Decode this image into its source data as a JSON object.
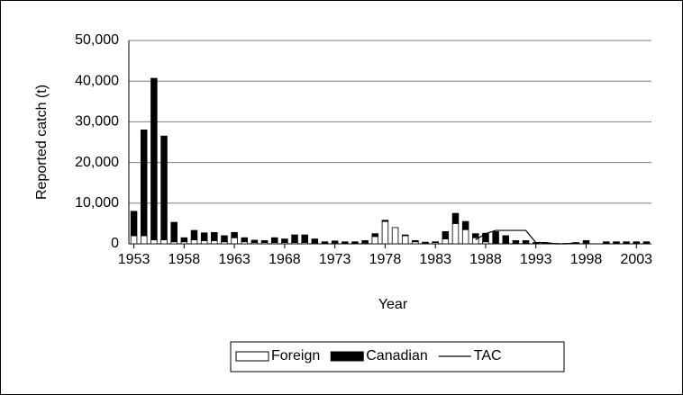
{
  "chart_data": {
    "type": "stacked_bar_line",
    "x_label": "Year",
    "y_label": "Reported catch (t)",
    "categories": [
      "1953",
      null,
      null,
      null,
      null,
      "1958",
      null,
      null,
      null,
      null,
      "1963",
      null,
      null,
      null,
      null,
      "1968",
      null,
      null,
      null,
      null,
      "1973",
      null,
      null,
      null,
      null,
      "1978",
      null,
      null,
      null,
      null,
      "1983",
      null,
      null,
      null,
      null,
      "1988",
      null,
      null,
      null,
      null,
      "1993",
      null,
      null,
      null,
      null,
      "1998",
      null,
      null,
      null,
      null,
      "2003",
      null
    ],
    "series": [
      {
        "name": "Foreign",
        "color": "#ffffff",
        "values": [
          2000,
          2000,
          1000,
          1000,
          500,
          500,
          1000,
          800,
          800,
          500,
          1500,
          500,
          300,
          300,
          300,
          300,
          300,
          300,
          200,
          100,
          200,
          100,
          100,
          200,
          1800,
          5500,
          4000,
          2000,
          500,
          200,
          300,
          1200,
          5000,
          3500,
          1500,
          500,
          0,
          0,
          0,
          0,
          0,
          0,
          0,
          0,
          0,
          0,
          0,
          0,
          0,
          0,
          0,
          0
        ]
      },
      {
        "name": "Canadian",
        "color": "#000000",
        "values": [
          6000,
          26000,
          39700,
          25500,
          4800,
          1000,
          2300,
          1900,
          2000,
          1500,
          1300,
          1000,
          600,
          500,
          1200,
          900,
          1900,
          1900,
          1000,
          400,
          500,
          400,
          400,
          600,
          700,
          300,
          0,
          200,
          300,
          200,
          200,
          1800,
          2500,
          2000,
          1000,
          2100,
          3000,
          2000,
          800,
          800,
          300,
          200,
          100,
          100,
          300,
          800,
          0,
          500,
          500,
          500,
          500,
          500
        ]
      },
      {
        "name": "TAC",
        "line": true,
        "color": "#000000",
        "values": [
          null,
          null,
          null,
          null,
          null,
          null,
          null,
          null,
          null,
          null,
          null,
          null,
          null,
          null,
          null,
          null,
          null,
          null,
          null,
          null,
          null,
          null,
          null,
          null,
          null,
          null,
          null,
          null,
          null,
          null,
          null,
          null,
          null,
          null,
          1000,
          2500,
          3300,
          3300,
          3300,
          3300,
          300,
          300,
          0,
          0,
          300,
          null,
          null,
          null,
          null,
          null,
          null,
          null
        ]
      }
    ],
    "ylim": [
      0,
      50000
    ],
    "yticks": [
      0,
      {
        "value": 10000,
        "label": "10,000"
      },
      {
        "value": 20000,
        "label": "20,000"
      },
      {
        "value": 30000,
        "label": "30,000"
      },
      {
        "value": 40000,
        "label": "40,000"
      },
      {
        "value": 50000,
        "label": "50,000"
      }
    ],
    "grid": true
  }
}
